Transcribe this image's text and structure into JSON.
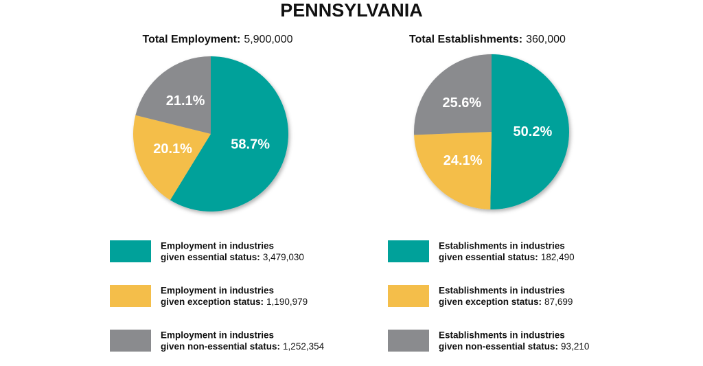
{
  "title": "PENNSYLVANIA",
  "chart_data": [
    {
      "type": "pie",
      "total_label": "Total Employment:",
      "total": "5,900,000",
      "values": [
        58.7,
        20.1,
        21.1
      ],
      "value_labels": [
        "58.7%",
        "20.1%",
        "21.1%"
      ],
      "colors": [
        "#00a19a",
        "#f4be4a",
        "#8a8b8e"
      ],
      "legend": [
        {
          "line1": "Employment in industries",
          "line2": "given essential status:",
          "count": "3,479,030"
        },
        {
          "line1": "Employment in industries",
          "line2": "given exception status:",
          "count": "1,190,979"
        },
        {
          "line1": "Employment in industries",
          "line2": "given non-essential status:",
          "count": "1,252,354"
        }
      ]
    },
    {
      "type": "pie",
      "total_label": "Total Establishments:",
      "total": "360,000",
      "values": [
        50.2,
        24.1,
        25.6
      ],
      "value_labels": [
        "50.2%",
        "24.1%",
        "25.6%"
      ],
      "colors": [
        "#00a19a",
        "#f4be4a",
        "#8a8b8e"
      ],
      "legend": [
        {
          "line1": "Establishments in industries",
          "line2": "given essential status:",
          "count": "182,490"
        },
        {
          "line1": "Establishments in industries",
          "line2": "given exception status:",
          "count": "87,699"
        },
        {
          "line1": "Establishments in industries",
          "line2": "given non-essential status:",
          "count": "93,210"
        }
      ]
    }
  ]
}
